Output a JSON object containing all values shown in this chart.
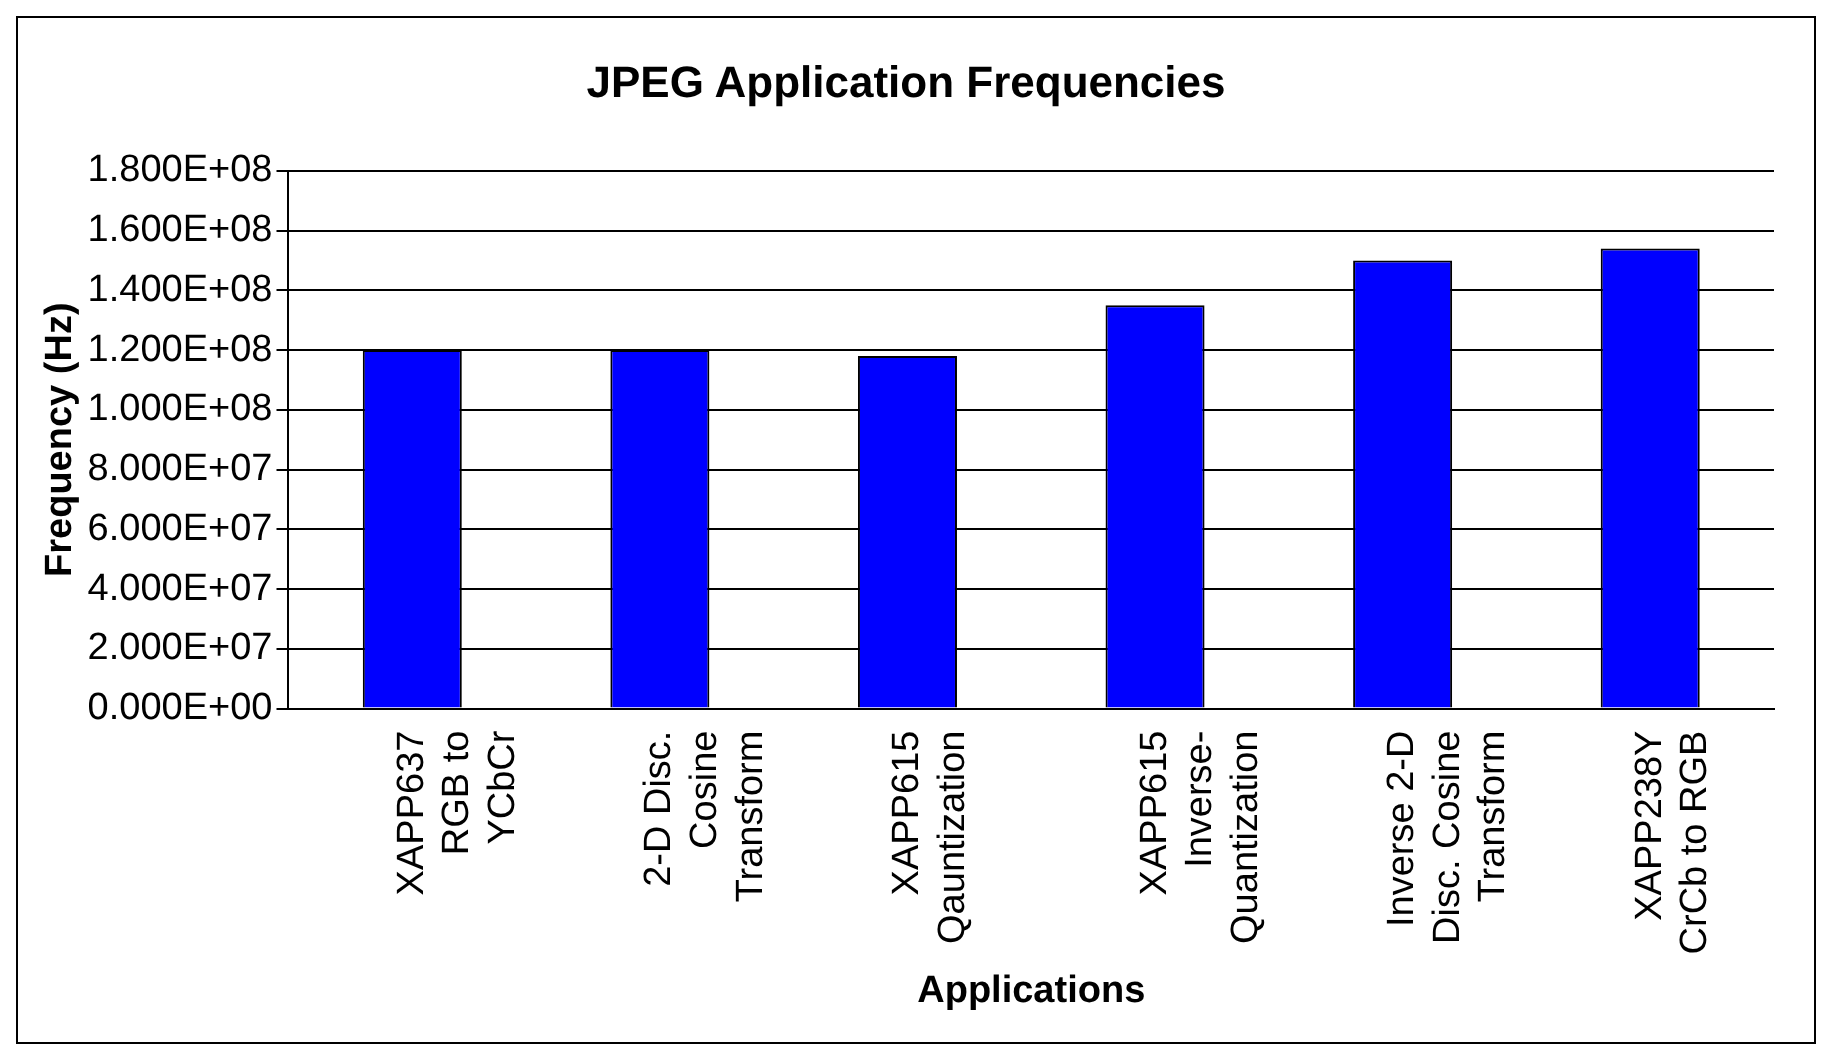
{
  "chart_data": {
    "type": "bar",
    "title": "JPEG Application Frequencies",
    "xlabel": "Applications",
    "ylabel": "Frequency (Hz)",
    "categories": [
      "XAPP637\nRGB to\nYCbCr",
      "2-D Disc.\nCosine\nTransform",
      "XAPP615\nQauntization",
      "XAPP615\nInverse-\nQuantization",
      "Inverse 2-D\nDisc. Cosine\nTransform",
      "XAPP238Y\nCrCb to RGB"
    ],
    "values": [
      120000000,
      120000000,
      118000000,
      135000000,
      150000000,
      154000000
    ],
    "color": "#0000ff",
    "ylim": [
      0,
      180000000
    ],
    "yticks": [
      {
        "value": 0,
        "label": "0.000E+00"
      },
      {
        "value": 20000000,
        "label": "2.000E+07"
      },
      {
        "value": 40000000,
        "label": "4.000E+07"
      },
      {
        "value": 60000000,
        "label": "6.000E+07"
      },
      {
        "value": 80000000,
        "label": "8.000E+07"
      },
      {
        "value": 100000000,
        "label": "1.000E+08"
      },
      {
        "value": 120000000,
        "label": "1.200E+08"
      },
      {
        "value": 140000000,
        "label": "1.400E+08"
      },
      {
        "value": 160000000,
        "label": "1.600E+08"
      },
      {
        "value": 180000000,
        "label": "1.800E+08"
      }
    ],
    "grid": "y",
    "legend": false
  }
}
